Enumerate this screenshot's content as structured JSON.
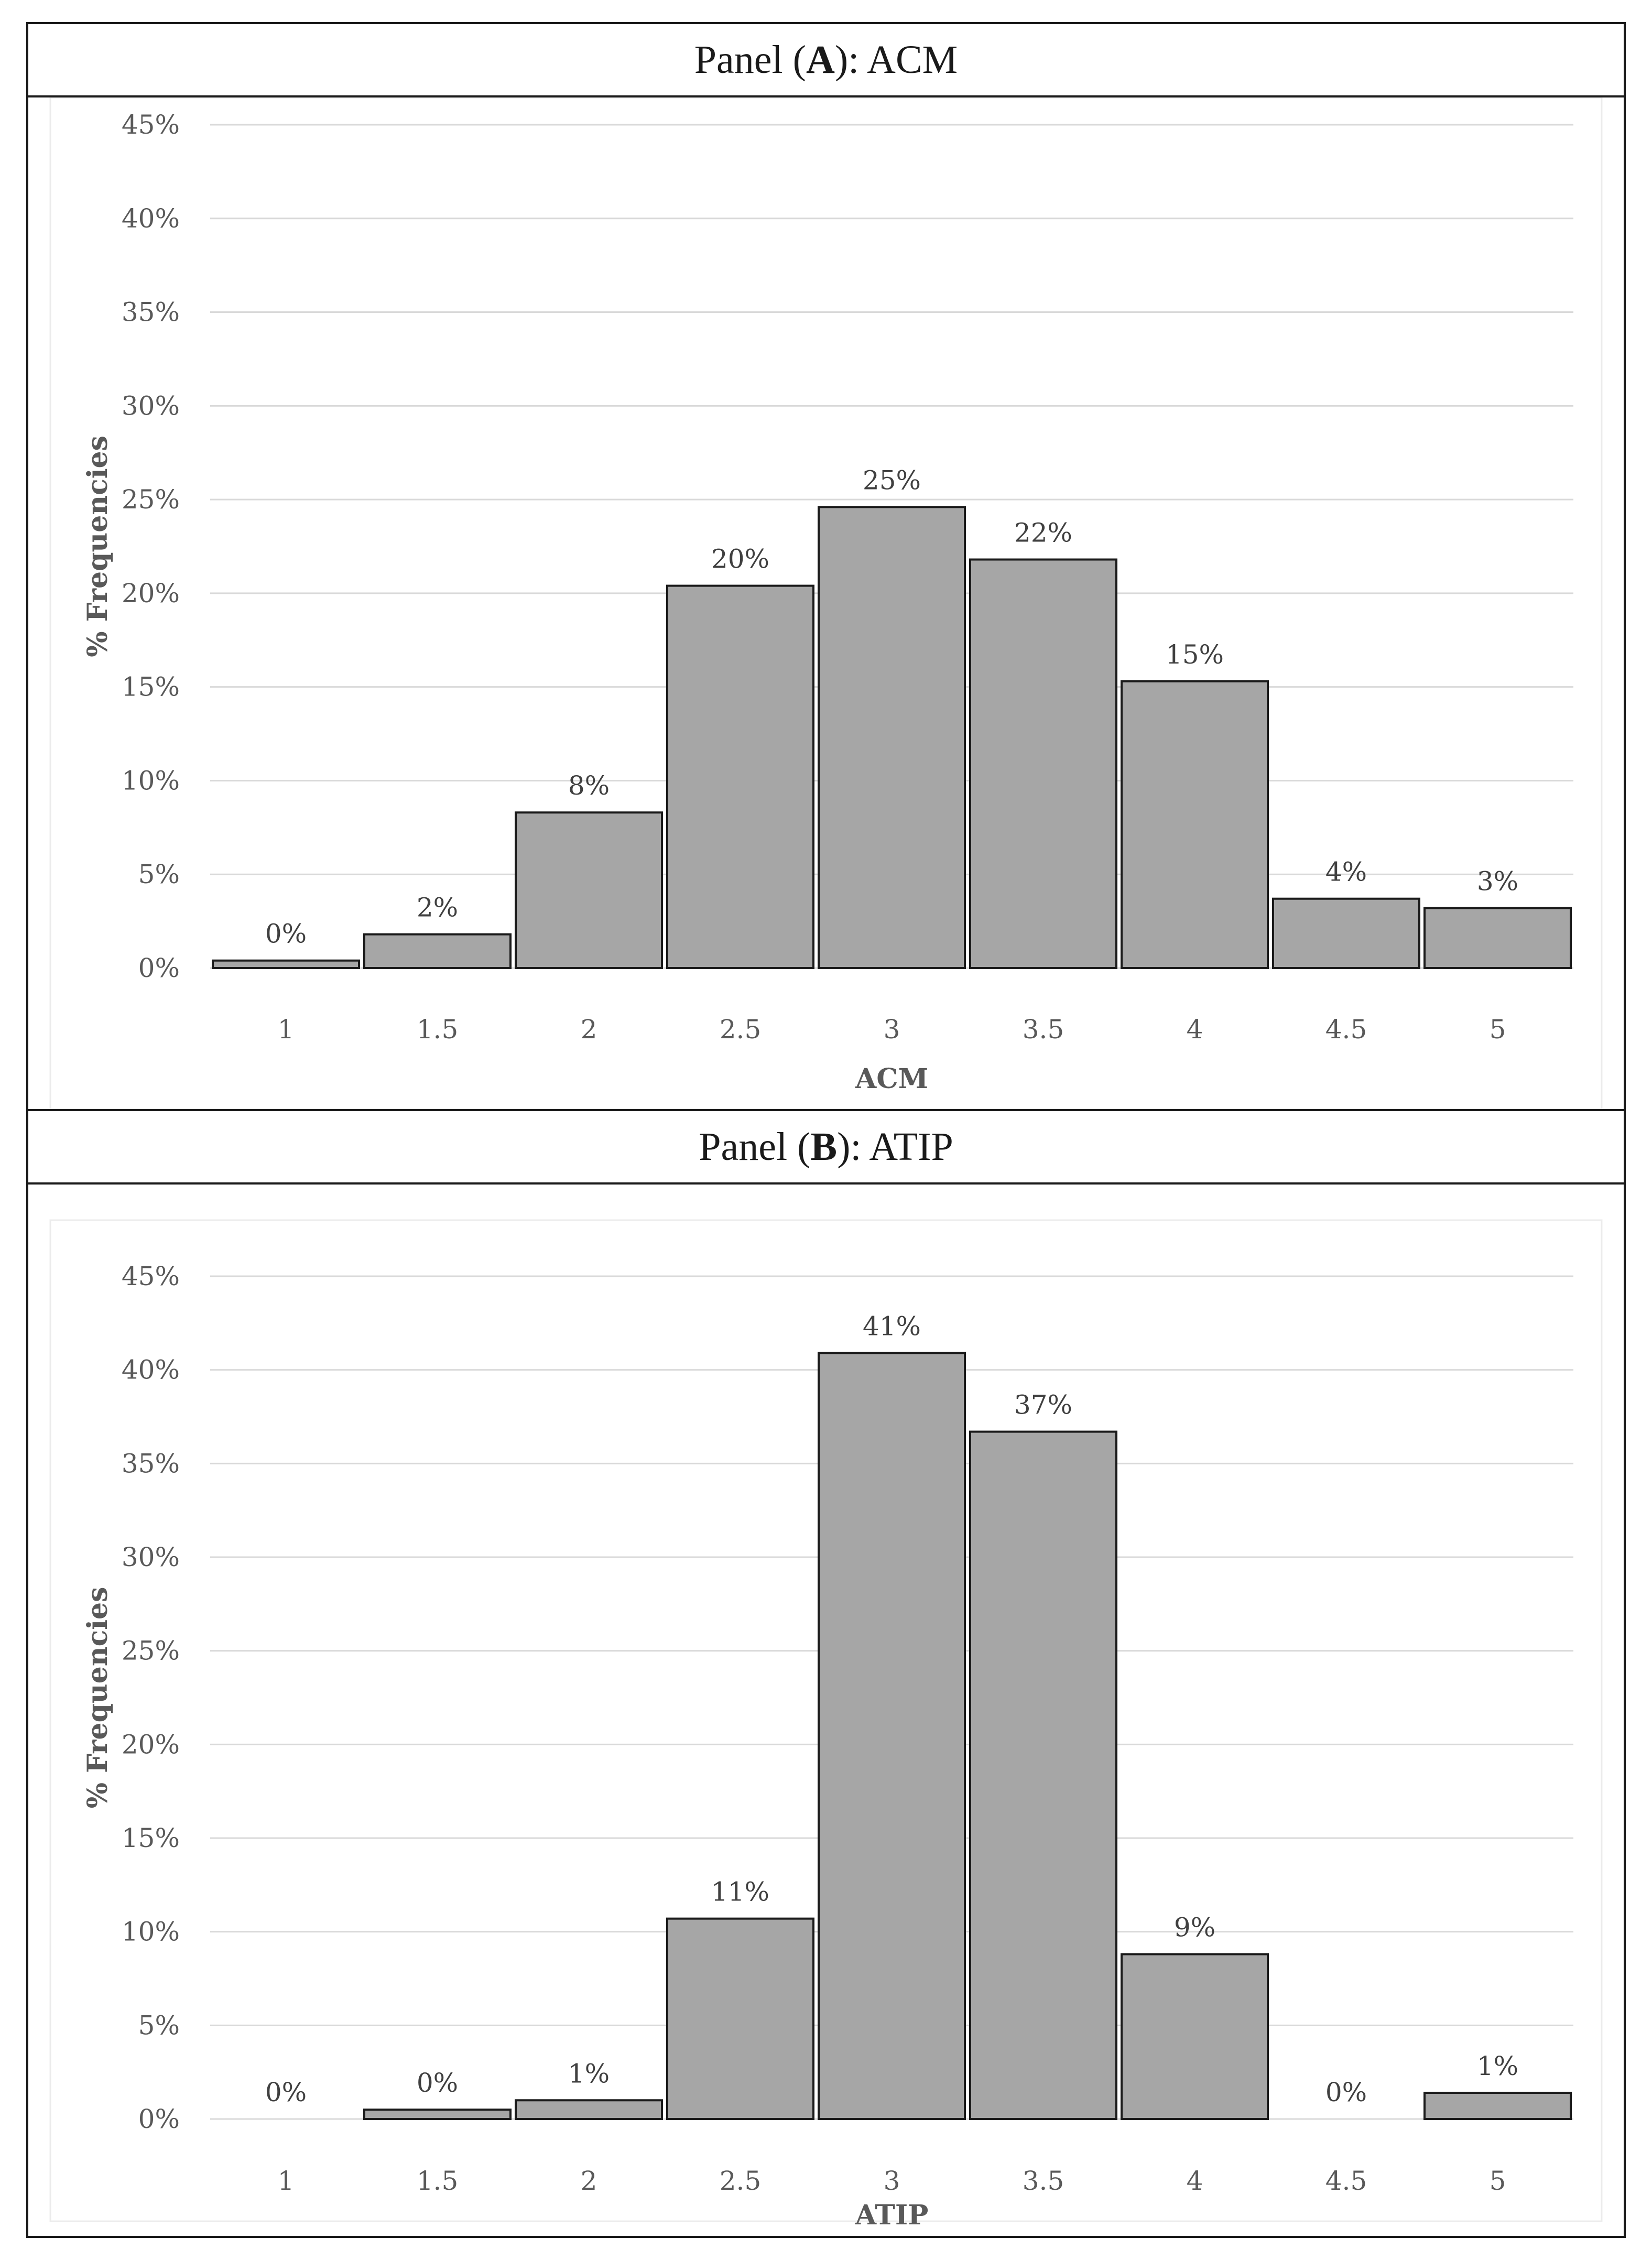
{
  "panels": [
    {
      "title_prefix": "Panel (",
      "title_letter": "A",
      "title_suffix": "): ACM"
    },
    {
      "title_prefix": "Panel (",
      "title_letter": "B",
      "title_suffix": "): ATIP"
    }
  ],
  "colors": {
    "bar_fill": "#a6a6a6",
    "bar_stroke": "#1a1a1a",
    "grid": "#d9d9d9"
  },
  "chart_data": [
    {
      "type": "bar",
      "title": "Panel (A): ACM",
      "xlabel": "ACM",
      "ylabel": "% Frequencies",
      "categories": [
        "1",
        "1.5",
        "2",
        "2.5",
        "3",
        "3.5",
        "4",
        "4.5",
        "5"
      ],
      "values": [
        0.4,
        1.8,
        8.3,
        20.4,
        24.6,
        21.8,
        15.3,
        3.7,
        3.2
      ],
      "data_labels": [
        "0%",
        "2%",
        "8%",
        "20%",
        "25%",
        "22%",
        "15%",
        "4%",
        "3%"
      ],
      "ylim": [
        0,
        45
      ],
      "yticks": [
        "0%",
        "5%",
        "10%",
        "15%",
        "20%",
        "25%",
        "30%",
        "35%",
        "40%",
        "45%"
      ],
      "grid": true
    },
    {
      "type": "bar",
      "title": "Panel (B): ATIP",
      "xlabel": "ATIP",
      "ylabel": "% Frequencies",
      "categories": [
        "1",
        "1.5",
        "2",
        "2.5",
        "3",
        "3.5",
        "4",
        "4.5",
        "5"
      ],
      "values": [
        0,
        0.5,
        1.0,
        10.7,
        40.9,
        36.7,
        8.8,
        0,
        1.4
      ],
      "data_labels": [
        "0%",
        "0%",
        "1%",
        "11%",
        "41%",
        "37%",
        "9%",
        "0%",
        "1%"
      ],
      "ylim": [
        0,
        45
      ],
      "yticks": [
        "0%",
        "5%",
        "10%",
        "15%",
        "20%",
        "25%",
        "30%",
        "35%",
        "40%",
        "45%"
      ],
      "grid": true
    }
  ]
}
